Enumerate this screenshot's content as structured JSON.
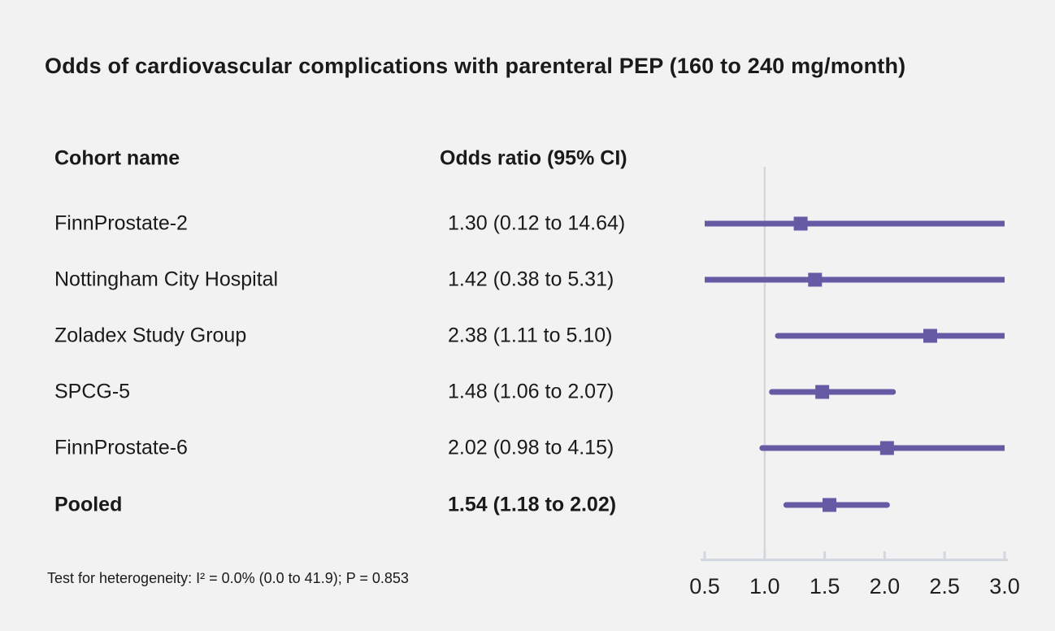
{
  "title": "Odds of cardiovascular complications with parenteral PEP (160 to 240 mg/month)",
  "columns": {
    "cohort": "Cohort name",
    "or": "Odds ratio (95% CI)"
  },
  "footnote": "Test for heterogeneity: I² = 0.0% (0.0 to 41.9); P = 0.853",
  "chart_data": {
    "type": "forest",
    "title": "Odds of cardiovascular complications with parenteral PEP (160 to 240 mg/month)",
    "x_ticks": [
      0.5,
      1.0,
      1.5,
      2.0,
      2.5,
      3.0
    ],
    "x_tick_labels": [
      "0.5",
      "1.0",
      "1.5",
      "2.0",
      "2.5",
      "3.0"
    ],
    "xlim": [
      0.5,
      3.0
    ],
    "reference_line": 1.0,
    "rows": [
      {
        "cohort": "FinnProstate-2",
        "or_text": "1.30 (0.12 to 14.64)",
        "estimate": 1.3,
        "ci_low": 0.12,
        "ci_high": 14.64,
        "bold": false
      },
      {
        "cohort": "Nottingham City Hospital",
        "or_text": "1.42 (0.38 to 5.31)",
        "estimate": 1.42,
        "ci_low": 0.38,
        "ci_high": 5.31,
        "bold": false
      },
      {
        "cohort": "Zoladex Study Group",
        "or_text": "2.38 (1.11 to 5.10)",
        "estimate": 2.38,
        "ci_low": 1.11,
        "ci_high": 5.1,
        "bold": false
      },
      {
        "cohort": "SPCG-5",
        "or_text": "1.48 (1.06 to 2.07)",
        "estimate": 1.48,
        "ci_low": 1.06,
        "ci_high": 2.07,
        "bold": false
      },
      {
        "cohort": "FinnProstate-6",
        "or_text": "2.02 (0.98 to 4.15)",
        "estimate": 2.02,
        "ci_low": 0.98,
        "ci_high": 4.15,
        "bold": false
      },
      {
        "cohort": "Pooled",
        "or_text": "1.54 (1.18 to 2.02)",
        "estimate": 1.54,
        "ci_low": 1.18,
        "ci_high": 2.02,
        "bold": true
      }
    ],
    "colors": {
      "marker": "#675aa5",
      "axis": "#d3d7e0",
      "background": "#f2f2f2",
      "text": "#1a1a1a"
    }
  }
}
